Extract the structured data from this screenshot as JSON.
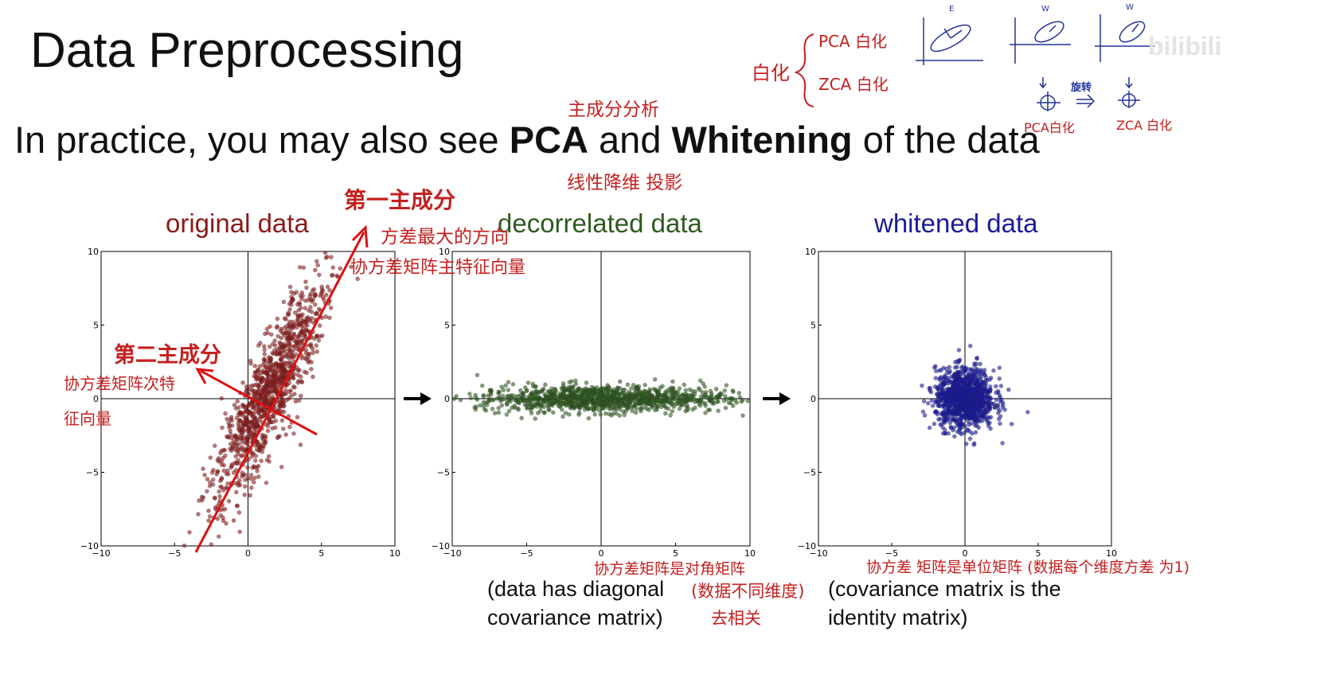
{
  "slide": {
    "title": "Data Preprocessing",
    "subtitle_pre": "In practice, you may also see ",
    "subtitle_pca": "PCA",
    "subtitle_and": " and ",
    "subtitle_whitening": "Whitening",
    "subtitle_post": " of the data"
  },
  "panels": [
    {
      "title": "original data",
      "color": "#8b1a1a"
    },
    {
      "title": "decorrelated data",
      "color": "#2f5a1f"
    },
    {
      "title": "whitened data",
      "color": "#1a1a9c"
    }
  ],
  "captions": {
    "decorrelated_line1": "(data has diagonal",
    "decorrelated_line2": "covariance matrix)",
    "whitened_line1": "(covariance matrix is the",
    "whitened_line2": "identity matrix)"
  },
  "annotations": {
    "pca_cn": "主成分分析",
    "projection_cn": "线性降维 投影",
    "first_pc": "第一主成分",
    "max_variance_dir": "方差最大的方向",
    "cov_main_eigvec": "协方差矩阵主特征向量",
    "second_pc": "第二主成分",
    "cov_second_eig_1": "协方差矩阵次特",
    "cov_second_eig_2": "征向量",
    "diag_cov": "协方差矩阵是对角矩阵",
    "dim_diff": "(数据不同维度)",
    "decorr": "去相关",
    "unit_cov": "协方差 矩阵是单位矩阵 (数据每个维度方差 为1)",
    "whiten": "白化",
    "pca_whiten": "PCA 白化",
    "zca_whiten": "ZCA 白化",
    "rotate": "旋转",
    "pca_whiten_small": "PCA白化",
    "zca_whiten_small": "ZCA 白化",
    "sketch_e": "E",
    "sketch_wpca": "W",
    "sketch_wzca": "W"
  },
  "watermark": "bilibili",
  "axis": {
    "ticks": [
      "−10",
      "−5",
      "0",
      "5",
      "10"
    ]
  },
  "chart_data": [
    {
      "type": "scatter",
      "title": "original data",
      "xlim": [
        -10,
        10
      ],
      "ylim": [
        -10,
        10
      ],
      "xticks": [
        -10,
        -5,
        0,
        5,
        10
      ],
      "yticks": [
        -10,
        -5,
        0,
        5,
        10
      ],
      "cloud": {
        "center": [
          1.5,
          0.5
        ],
        "major_std": 4.2,
        "minor_std": 0.85,
        "angle_deg": 65,
        "n": 1100
      },
      "color": "#8b1a1a"
    },
    {
      "type": "scatter",
      "title": "decorrelated data",
      "xlim": [
        -10,
        10
      ],
      "ylim": [
        -10,
        10
      ],
      "xticks": [
        -10,
        -5,
        0,
        5,
        10
      ],
      "yticks": [
        -10,
        -5,
        0,
        5,
        10
      ],
      "cloud": {
        "center": [
          0,
          0
        ],
        "major_std": 4.2,
        "minor_std": 0.45,
        "angle_deg": 0,
        "n": 1100
      },
      "color": "#2f5a1f"
    },
    {
      "type": "scatter",
      "title": "whitened data",
      "xlim": [
        -10,
        10
      ],
      "ylim": [
        -10,
        10
      ],
      "xticks": [
        -10,
        -5,
        0,
        5,
        10
      ],
      "yticks": [
        -10,
        -5,
        0,
        5,
        10
      ],
      "cloud": {
        "center": [
          0,
          0
        ],
        "major_std": 1.0,
        "minor_std": 1.0,
        "angle_deg": 0,
        "n": 1100
      },
      "color": "#1a1a9c"
    }
  ]
}
